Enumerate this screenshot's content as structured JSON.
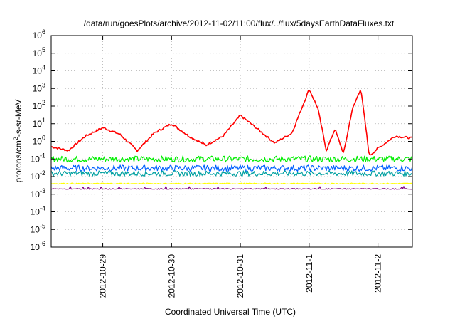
{
  "chart_data": {
    "type": "line",
    "title": "/data/run/goesPlots/archive/2012-11-02/11:00/flux/../flux/5daysEarthDataFluxes.txt",
    "xlabel": "Coordinated Universal Time (UTC)",
    "ylabel_parts": {
      "base": "protons/cm",
      "sup": "2",
      "rest": "-s-sr-MeV"
    },
    "y_scale": "log",
    "ylim": [
      1e-06,
      1000000.0
    ],
    "y_ticks": [
      {
        "base": "10",
        "exp": "-6",
        "value": -6
      },
      {
        "base": "10",
        "exp": "-5",
        "value": -5
      },
      {
        "base": "10",
        "exp": "-4",
        "value": -4
      },
      {
        "base": "10",
        "exp": "-3",
        "value": -3
      },
      {
        "base": "10",
        "exp": "-2",
        "value": -2
      },
      {
        "base": "10",
        "exp": "-1",
        "value": -1
      },
      {
        "base": "10",
        "exp": "0",
        "value": 0
      },
      {
        "base": "10",
        "exp": "1",
        "value": 1
      },
      {
        "base": "10",
        "exp": "2",
        "value": 2
      },
      {
        "base": "10",
        "exp": "3",
        "value": 3
      },
      {
        "base": "10",
        "exp": "4",
        "value": 4
      },
      {
        "base": "10",
        "exp": "5",
        "value": 5
      },
      {
        "base": "10",
        "exp": "6",
        "value": 6
      }
    ],
    "xlim": [
      "2012-10-28 06:00",
      "2012-11-02 12:00"
    ],
    "x_ticks": [
      "2012-10-29",
      "2012-10-30",
      "2012-10-31",
      "2012-11-1",
      "2012-11-2"
    ],
    "grid": true,
    "series": [
      {
        "color": "#ff0000",
        "x": [
          "2012-10-28 06:00",
          "2012-10-28 12:00",
          "2012-10-28 18:00",
          "2012-10-29 00:00",
          "2012-10-29 06:00",
          "2012-10-29 12:00",
          "2012-10-29 18:00",
          "2012-10-30 00:00",
          "2012-10-30 06:00",
          "2012-10-30 12:00",
          "2012-10-30 18:00",
          "2012-10-31 00:00",
          "2012-10-31 06:00",
          "2012-10-31 12:00",
          "2012-10-31 18:00",
          "2012-11-01 00:00",
          "2012-11-01 03:00",
          "2012-11-01 06:00",
          "2012-11-01 09:00",
          "2012-11-01 12:00",
          "2012-11-01 15:00",
          "2012-11-01 18:00",
          "2012-11-01 21:00",
          "2012-11-02 00:00",
          "2012-11-02 06:00",
          "2012-11-02 12:00"
        ],
        "values": [
          0.5,
          0.3,
          2,
          6,
          2.5,
          0.3,
          3,
          10,
          2,
          0.6,
          2,
          30,
          5,
          0.8,
          3,
          900,
          80,
          0.3,
          5,
          0.2,
          60,
          1000,
          0.15,
          0.4,
          2,
          1.5
        ]
      },
      {
        "color": "#00ee00",
        "x": [
          "2012-10-28 06:00",
          "2012-11-02 12:00"
        ],
        "values": [
          0.1,
          0.1
        ]
      },
      {
        "color": "#0060ff",
        "x": [
          "2012-10-28 06:00",
          "2012-11-02 12:00"
        ],
        "values": [
          0.03,
          0.03
        ]
      },
      {
        "color": "#00a0a0",
        "x": [
          "2012-10-28 06:00",
          "2012-11-02 12:00"
        ],
        "values": [
          0.015,
          0.015
        ]
      },
      {
        "color": "#ffff00",
        "x": [
          "2012-10-28 06:00",
          "2012-11-02 12:00"
        ],
        "values": [
          0.004,
          0.004
        ]
      },
      {
        "color": "#800080",
        "x": [
          "2012-10-28 06:00",
          "2012-11-02 12:00"
        ],
        "values": [
          0.002,
          0.002
        ]
      }
    ]
  }
}
